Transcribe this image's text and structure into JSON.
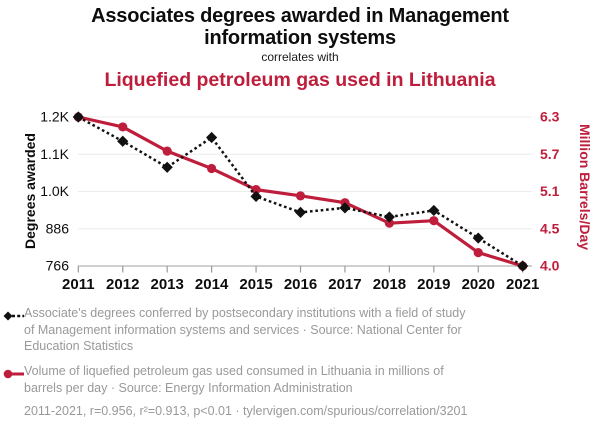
{
  "header": {
    "title": "Associates degrees awarded in Management information systems",
    "connector": "correlates with",
    "subtitle": "Liquefied petroleum gas used in Lithuania"
  },
  "chart_data": {
    "type": "line",
    "x": [
      2011,
      2012,
      2013,
      2014,
      2015,
      2016,
      2017,
      2018,
      2019,
      2020,
      2021
    ],
    "x_tick_labels": [
      "2011",
      "2012",
      "2013",
      "2014",
      "2015",
      "2016",
      "2017",
      "2018",
      "2019",
      "2020",
      "2021"
    ],
    "grid": true,
    "legend_position": "bottom",
    "left_axis": {
      "label": "Degrees awarded",
      "tick_labels": [
        "1.2K",
        "1.1K",
        "1.0K",
        "886",
        "766"
      ],
      "tick_values": [
        1200,
        1100,
        1000,
        886,
        766
      ]
    },
    "right_axis": {
      "label": "Million Barrels/Day",
      "tick_labels": [
        "6.3",
        "5.7",
        "5.1",
        "4.5",
        "4.0"
      ],
      "tick_values": [
        6.3,
        5.7,
        5.1,
        4.5,
        4.0
      ]
    },
    "series": [
      {
        "name": "Associate's degrees awarded in Management information systems",
        "axis": "left",
        "line_style": "dotted",
        "marker": "diamond",
        "values": [
          1200,
          1135,
          1065,
          1145,
          985,
          936,
          950,
          922,
          942,
          856,
          766
        ]
      },
      {
        "name": "Liquefied petroleum gas used in Lithuania",
        "axis": "right",
        "line_style": "solid",
        "marker": "circle",
        "values": [
          6.3,
          6.14,
          5.75,
          5.47,
          5.13,
          5.03,
          4.92,
          4.59,
          4.63,
          4.18,
          4.0
        ]
      }
    ]
  },
  "legend": {
    "items": [
      {
        "text": "Associate's degrees conferred by postsecondary institutions with a field of study of Management information systems and services · Source: National Center for Education Statistics"
      },
      {
        "text": "Volume of liquefied petroleum gas used consumed in Lithuania in millions of barrels per day · Source: Energy Information Administration"
      }
    ]
  },
  "footer": {
    "stats": "2011-2021, r=0.956, r²=0.913, p<0.01 · tylervigen.com/spurious/correlation/3201"
  },
  "colors": {
    "series_black": "#111111",
    "series_red": "#be1e3c",
    "muted_text": "#999999",
    "grid": "#ececec",
    "axis": "#b3b3b3",
    "tick": "#999999"
  }
}
